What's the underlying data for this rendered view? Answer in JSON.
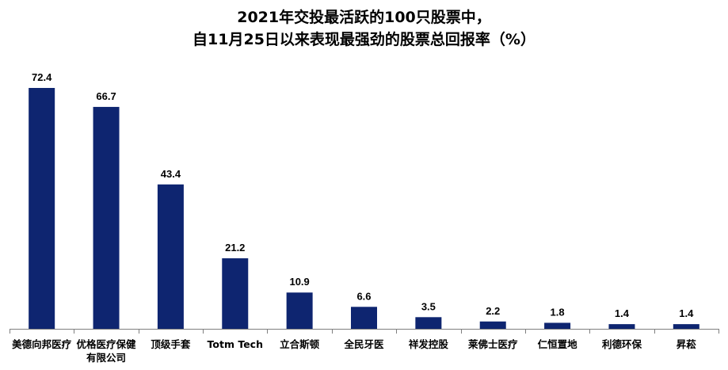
{
  "chart_data": {
    "type": "bar",
    "title_line1": "2021年交投最活跃的100只股票中，",
    "title_line2": "自11月25日以来表现最强劲的股票总回报率（%）",
    "categories": [
      [
        "美德向邦医疗"
      ],
      [
        "优格医疗保健",
        "有限公司"
      ],
      [
        "顶级手套"
      ],
      [
        "Totm Tech"
      ],
      [
        "立合斯顿"
      ],
      [
        "全民牙医"
      ],
      [
        "祥发控股"
      ],
      [
        "莱佛士医疗"
      ],
      [
        "仁恒置地"
      ],
      [
        "利德环保"
      ],
      [
        "昇菘"
      ]
    ],
    "values": [
      72.4,
      66.7,
      43.4,
      21.2,
      10.9,
      6.6,
      3.5,
      2.2,
      1.8,
      1.4,
      1.4
    ],
    "value_labels": [
      "72.4",
      "66.7",
      "43.4",
      "21.2",
      "10.9",
      "6.6",
      "3.5",
      "2.2",
      "1.8",
      "1.4",
      "1.4"
    ],
    "bar_color": "#0E2570",
    "axis_color": "#7F7F7F",
    "ylim": [
      0,
      72.4
    ],
    "grid": false,
    "legend": "none"
  }
}
